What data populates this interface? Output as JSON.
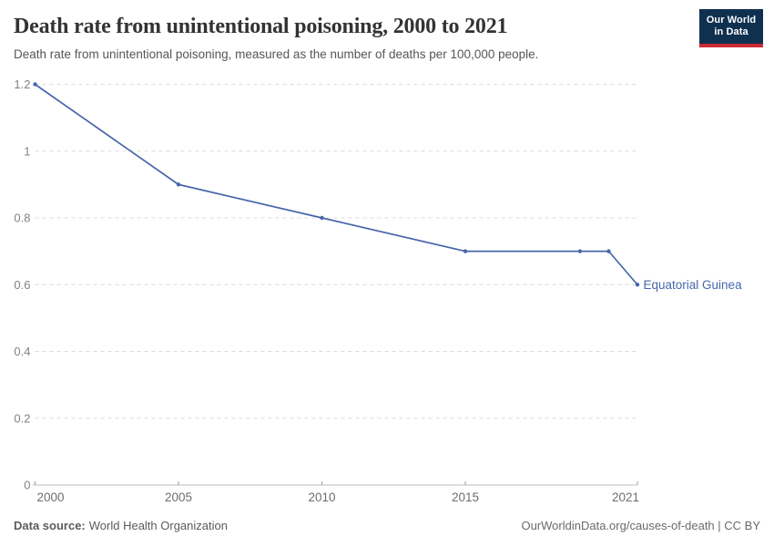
{
  "header": {
    "title": "Death rate from unintentional poisoning, 2000 to 2021",
    "subtitle": "Death rate from unintentional poisoning, measured as the number of deaths per 100,000 people.",
    "logo": {
      "line1": "Our World",
      "line2": "in Data",
      "bg_color": "#103050",
      "accent_color": "#CC2A36"
    }
  },
  "chart_data": {
    "type": "line",
    "title": "Death rate from unintentional poisoning, 2000 to 2021",
    "xlabel": "",
    "ylabel": "Deaths per 100,000 people",
    "xlim": [
      2000,
      2021
    ],
    "ylim": [
      0,
      1.2
    ],
    "grid": "horizontal-dashed",
    "legend_position": "end-of-line-label",
    "x_ticks": [
      {
        "v": 2000,
        "label": "2000"
      },
      {
        "v": 2005,
        "label": "2005"
      },
      {
        "v": 2010,
        "label": "2010"
      },
      {
        "v": 2015,
        "label": "2015"
      },
      {
        "v": 2021,
        "label": "2021"
      }
    ],
    "y_ticks": [
      {
        "v": 0,
        "label": "0"
      },
      {
        "v": 0.2,
        "label": "0.2"
      },
      {
        "v": 0.4,
        "label": "0.4"
      },
      {
        "v": 0.6,
        "label": "0.6"
      },
      {
        "v": 0.8,
        "label": "0.8"
      },
      {
        "v": 1,
        "label": "1"
      },
      {
        "v": 1.2,
        "label": "1.2"
      }
    ],
    "series": [
      {
        "name": "Equatorial Guinea",
        "color": "#4766AB",
        "points": [
          [
            2000,
            1.2
          ],
          [
            2005,
            0.9
          ],
          [
            2010,
            0.8
          ],
          [
            2015,
            0.7
          ],
          [
            2019,
            0.7
          ],
          [
            2020,
            0.7
          ],
          [
            2021,
            0.6
          ]
        ]
      }
    ]
  },
  "footer": {
    "datasource_label": "Data source:",
    "datasource_value": "World Health Organization",
    "credit": "OurWorldinData.org/causes-of-death | CC BY"
  }
}
